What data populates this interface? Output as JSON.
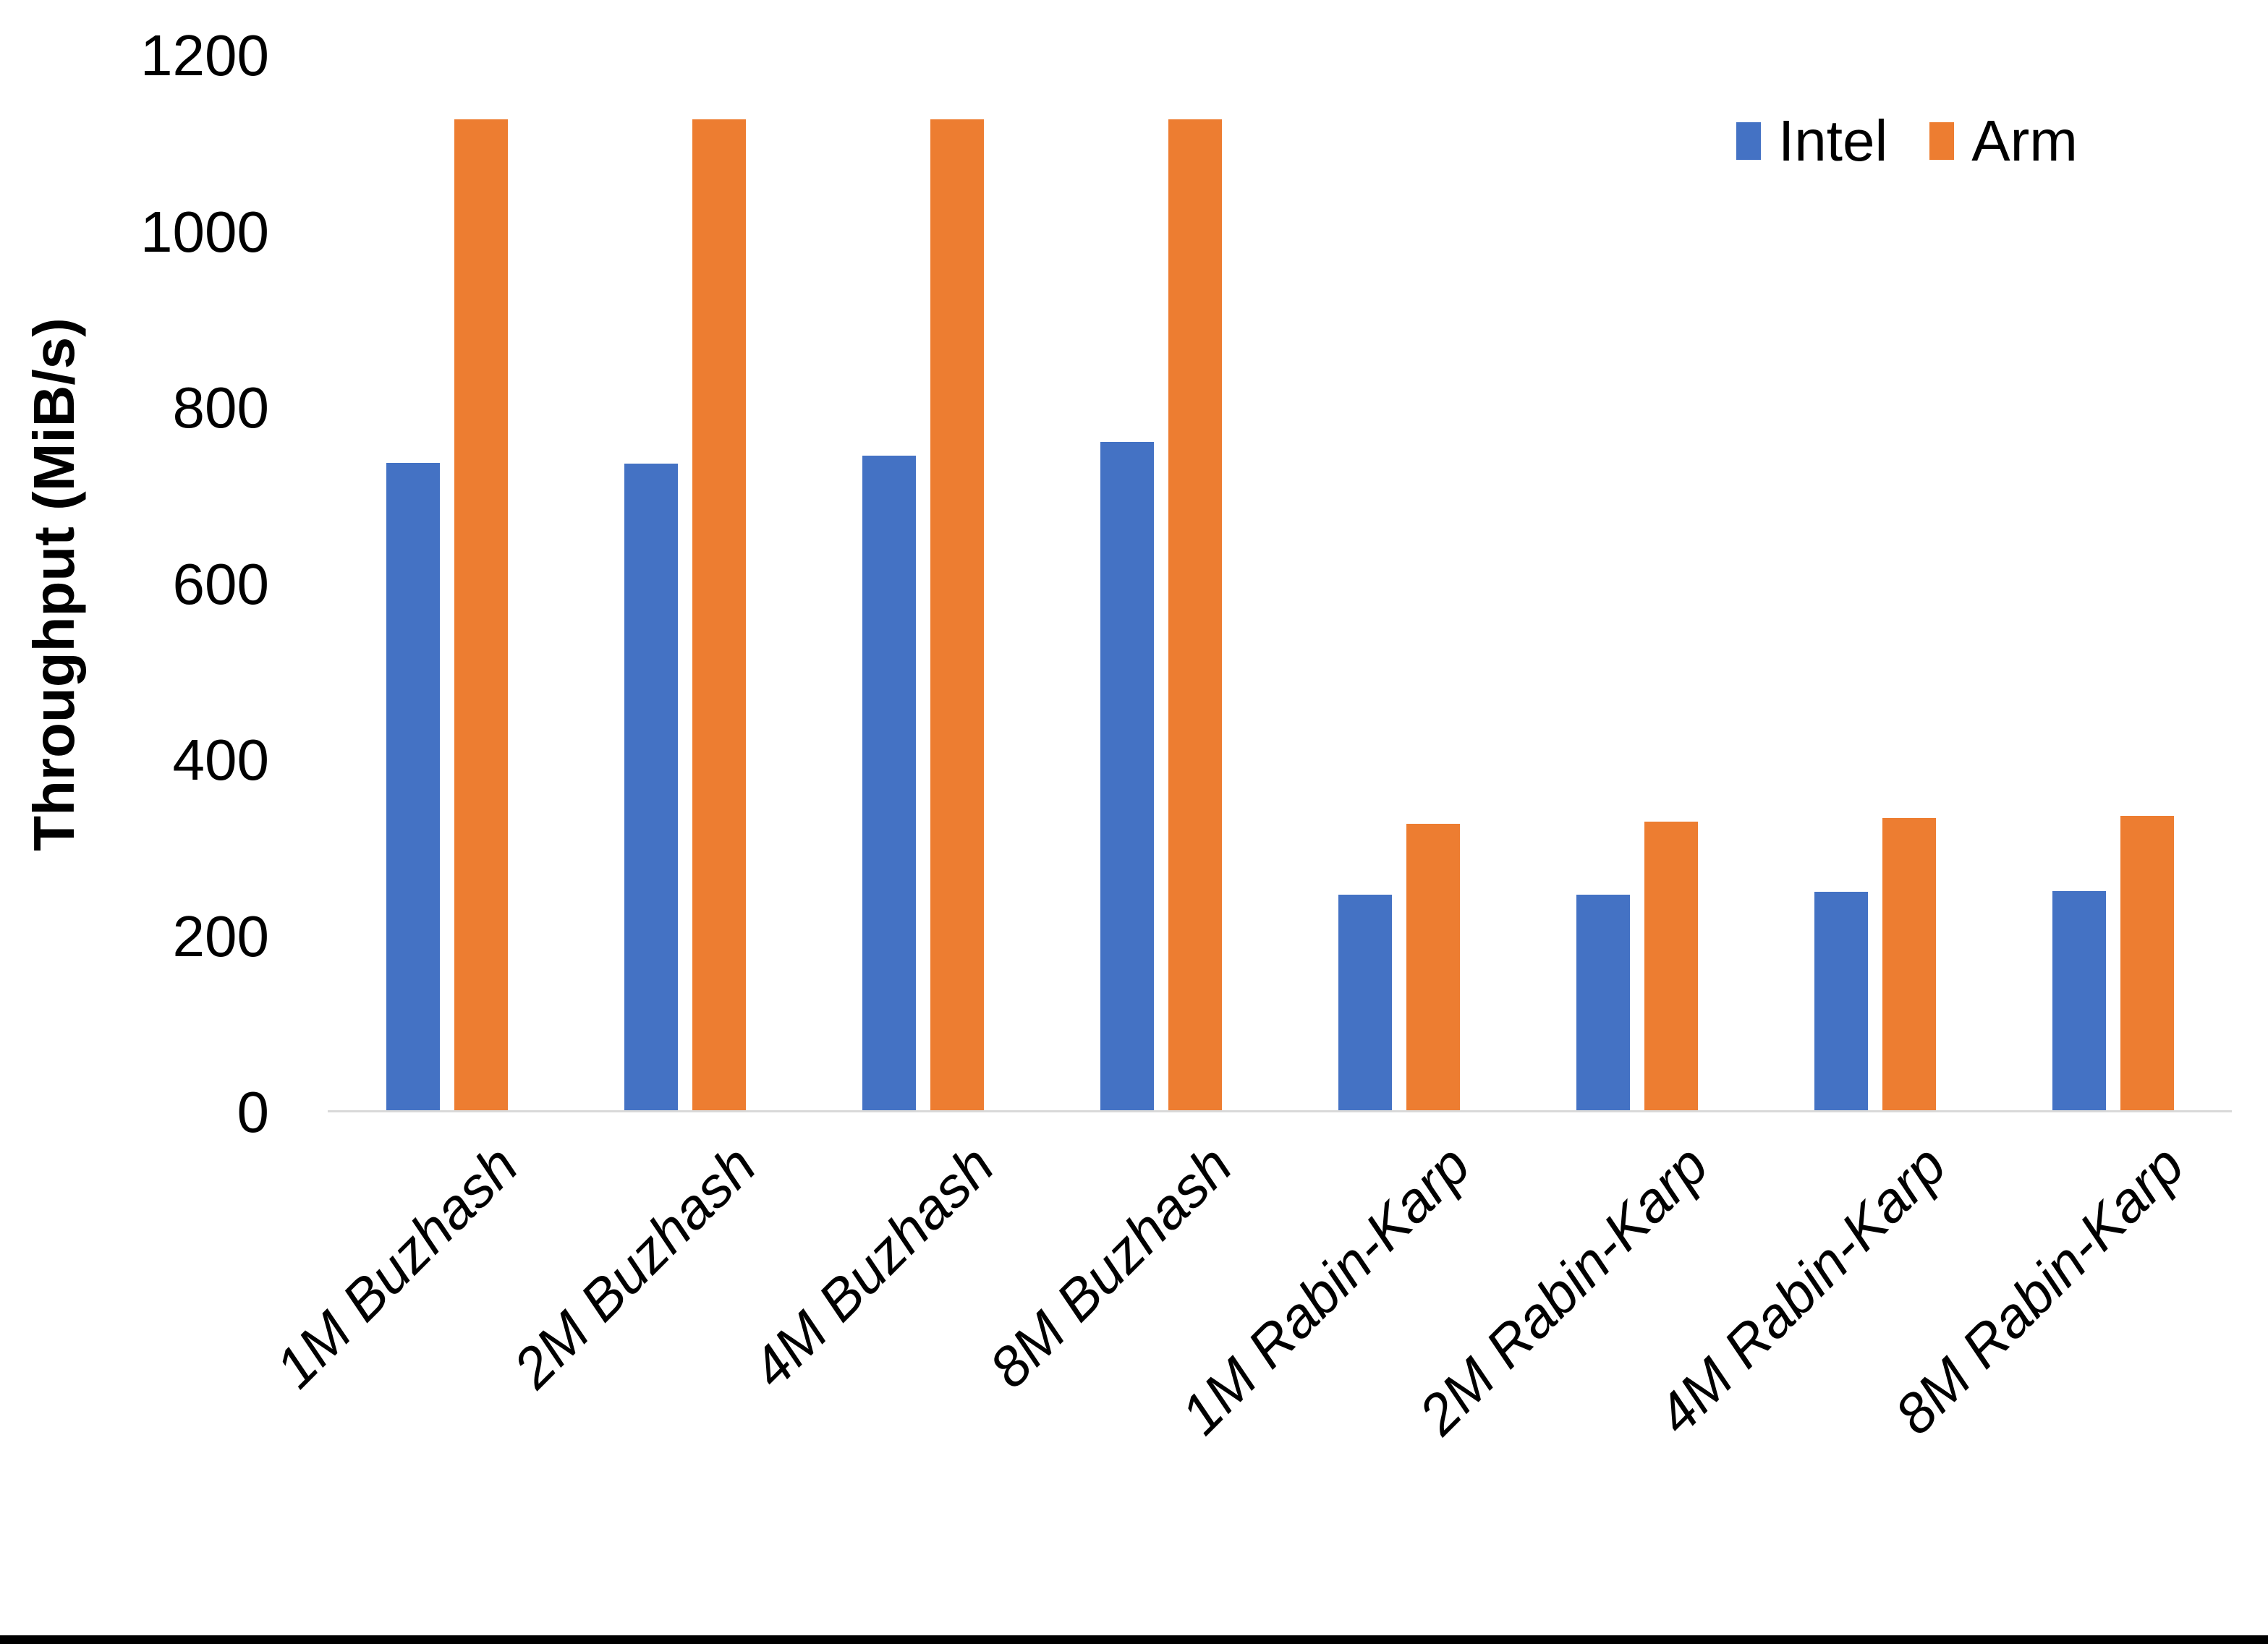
{
  "chart_data": {
    "type": "bar",
    "title": "",
    "xlabel": "",
    "ylabel": "Throughput (MiB/s)",
    "ylim": [
      0,
      1200
    ],
    "yticks": [
      0,
      200,
      400,
      600,
      800,
      1000,
      1200
    ],
    "grid": false,
    "legend_position": "top-right",
    "categories": [
      "1M Buzhash",
      "2M Buzhash",
      "4M Buzhash",
      "8M Buzhash",
      "1M Rabin-Karp",
      "2M Rabin-Karp",
      "4M Rabin-Karp",
      "8M Rabin-Karp"
    ],
    "series": [
      {
        "name": "Intel",
        "color": "#4472C4",
        "values": [
          735,
          734,
          743,
          759,
          245,
          245,
          248,
          249
        ]
      },
      {
        "name": "Arm",
        "color": "#ED7D31",
        "values": [
          1125,
          1125,
          1125,
          1125,
          325,
          328,
          332,
          334
        ]
      }
    ]
  },
  "colors": {
    "intel": "#4472C4",
    "arm": "#ED7D31",
    "axis_line": "#D9D9D9",
    "text": "#000000",
    "bottom_border": "#000000"
  }
}
